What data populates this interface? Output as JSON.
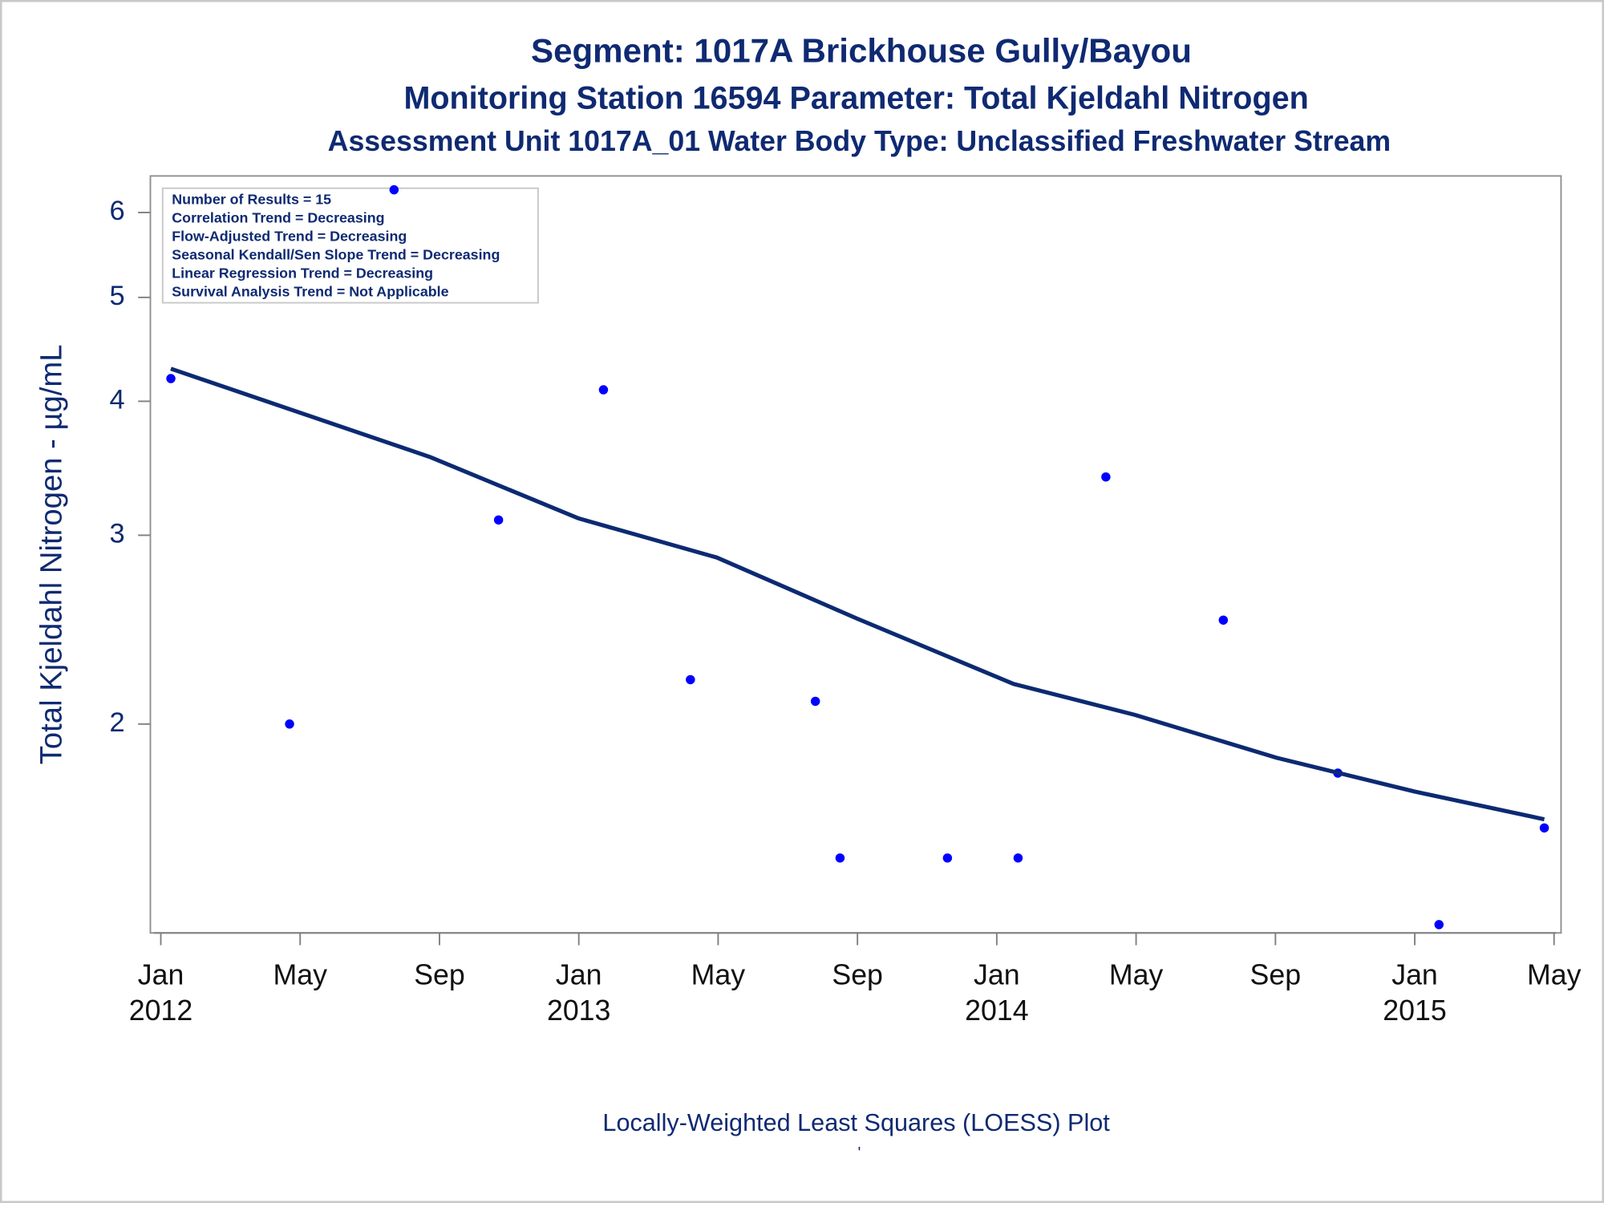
{
  "chart_data": {
    "type": "scatter",
    "title": "Segment: 1017A  Brickhouse Gully/Bayou",
    "subtitle": "Monitoring Station 16594 Parameter: Total Kjeldahl Nitrogen",
    "subtitle2": "Assessment Unit 1017A_01   Water Body Type: Unclassified Freshwater Stream",
    "y_label": "Total Kjeldahl Nitrogen -  µg/mL",
    "footnote": "Locally-Weighted Least Squares (LOESS) Plot",
    "footnote_mark": "'",
    "annotations": [
      "Number of Results = 15",
      "Correlation Trend = Decreasing",
      "Flow-Adjusted Trend = Decreasing",
      "Seasonal Kendall/Sen Slope Trend = Decreasing",
      "Linear Regression Trend = Decreasing",
      "Survival Analysis Trend = Not Applicable"
    ],
    "log_y": true,
    "ylim": [
      1.277,
      6.49
    ],
    "yticks": [
      2,
      3,
      4,
      5,
      6
    ],
    "xlim": [
      2011.975,
      2015.35
    ],
    "xticks": [
      {
        "value": 2012.0,
        "label": "Jan"
      },
      {
        "value": 2012.3333,
        "label": "May"
      },
      {
        "value": 2012.6667,
        "label": "Sep"
      },
      {
        "value": 2013.0,
        "label": "Jan"
      },
      {
        "value": 2013.3333,
        "label": "May"
      },
      {
        "value": 2013.6667,
        "label": "Sep"
      },
      {
        "value": 2014.0,
        "label": "Jan"
      },
      {
        "value": 2014.3333,
        "label": "May"
      },
      {
        "value": 2014.6667,
        "label": "Sep"
      },
      {
        "value": 2015.0,
        "label": "Jan"
      },
      {
        "value": 2015.3333,
        "label": "May"
      }
    ],
    "xtick_years": [
      2012,
      2013,
      2014,
      2015
    ],
    "series": [
      {
        "type": "scatter",
        "color": "#0000ff",
        "x": [
          2012.024,
          2012.308,
          2012.558,
          2012.808,
          2013.059,
          2013.267,
          2013.566,
          2013.625,
          2013.882,
          2014.051,
          2014.261,
          2014.542,
          2014.816,
          2015.058,
          2015.31
        ],
        "values": [
          4.2,
          2.0,
          6.3,
          3.1,
          4.1,
          2.2,
          2.1,
          1.5,
          1.5,
          1.5,
          3.4,
          2.5,
          1.8,
          1.3,
          1.6
        ]
      },
      {
        "type": "line",
        "color": "#0c2a72",
        "x": [
          2012.024,
          2012.643,
          2013.0,
          2013.33,
          2013.664,
          2014.04,
          2014.33,
          2014.67,
          2015.0,
          2015.31
        ],
        "values": [
          4.29,
          3.55,
          3.11,
          2.86,
          2.51,
          2.18,
          2.04,
          1.86,
          1.73,
          1.63
        ]
      }
    ]
  }
}
